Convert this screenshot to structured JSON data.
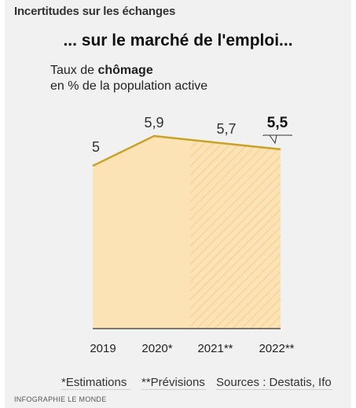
{
  "header": {
    "title": "Incertitudes sur les échanges"
  },
  "subtitle": "... sur le marché de l'emploi...",
  "description": {
    "prefix": "Taux de ",
    "bold": "chômage",
    "line2": "en % de la population active"
  },
  "colors": {
    "line": "#c9a227",
    "fill": "#fbe3b5",
    "hatch": "#f7d496",
    "axis": "#333333"
  },
  "chart_data": {
    "type": "area",
    "categories": [
      "2019",
      "2020*",
      "2021**",
      "2022**"
    ],
    "values": [
      5.0,
      5.9,
      5.7,
      5.5
    ],
    "value_labels": [
      "5",
      "5,9",
      "5,7",
      "5,5"
    ],
    "highlight_index": 3,
    "ylim": [
      0,
      6.2
    ],
    "hatched_from_index": 1,
    "title": "",
    "xlabel": "",
    "ylabel": ""
  },
  "footnotes": {
    "estimations": "*Estimations",
    "previsions": "**Prévisions",
    "sources": "Sources : Destatis, Ifo"
  },
  "credit": "INFOGRAPHIE LE MONDE"
}
